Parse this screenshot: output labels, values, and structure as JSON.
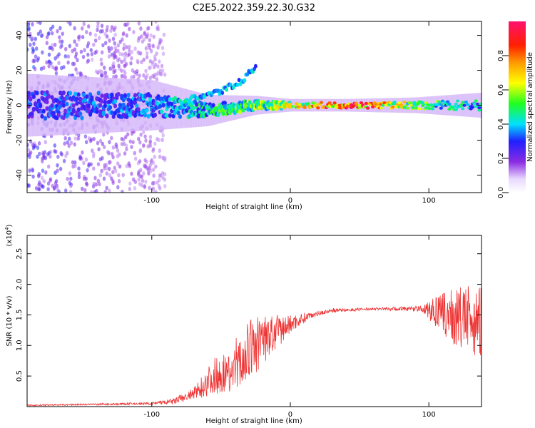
{
  "title": "C2E5.2022.359.22.30.G32",
  "chart_data": [
    {
      "type": "heatmap",
      "xlabel": "Height of straight line (km)",
      "ylabel": "Frequency (Hz)",
      "xlim": [
        -190,
        138
      ],
      "ylim": [
        -50,
        48
      ],
      "xticks": [
        -100,
        0,
        100
      ],
      "yticks": [
        -40,
        -20,
        0,
        20,
        40
      ],
      "colorbar": {
        "label": "Normalized spectral amplitude",
        "range": [
          0.0,
          1.0
        ],
        "ticks": [
          "0.0",
          "0.2",
          "0.4",
          "0.6",
          "0.8"
        ]
      },
      "band": {
        "description_points": [
          {
            "x": -190,
            "y": 0,
            "halfwidth": 10,
            "amp": 0.3
          },
          {
            "x": -100,
            "y": 0,
            "halfwidth": 8,
            "amp": 0.35
          },
          {
            "x": -60,
            "y": -3,
            "halfwidth": 5,
            "amp": 0.45
          },
          {
            "x": -25,
            "y": 0,
            "halfwidth": 3,
            "amp": 0.55
          },
          {
            "x": 0,
            "y": 0,
            "halfwidth": 2,
            "amp": 0.6
          },
          {
            "x": 40,
            "y": 0,
            "halfwidth": 2,
            "amp": 0.95
          },
          {
            "x": 90,
            "y": 0,
            "halfwidth": 2.5,
            "amp": 0.55
          },
          {
            "x": 138,
            "y": 0,
            "halfwidth": 4,
            "amp": 0.4
          }
        ],
        "upper_branch": [
          {
            "x": -75,
            "y": 3
          },
          {
            "x": -50,
            "y": 8
          },
          {
            "x": -35,
            "y": 14
          },
          {
            "x": -25,
            "y": 22
          }
        ]
      },
      "colors": {
        "frame": "#000000"
      }
    },
    {
      "type": "line",
      "xlabel": "Height of straight line (km)",
      "ylabel": "SNR (10 * v/v)",
      "ymultiplier": "(x10",
      "ymultiplier_exp": "4",
      "ymultiplier_close": ")",
      "xlim": [
        -190,
        138
      ],
      "ylim": [
        0,
        2.8
      ],
      "xticks": [
        -100,
        0,
        100
      ],
      "yticks": [
        "0.5",
        "1.0",
        "1.5",
        "2.0",
        "2.5"
      ],
      "series": [
        {
          "color": "#ee3333",
          "envelope": [
            {
              "x": -190,
              "mean": 0.02,
              "spread": 0.01
            },
            {
              "x": -100,
              "mean": 0.05,
              "spread": 0.02
            },
            {
              "x": -85,
              "mean": 0.08,
              "spread": 0.05
            },
            {
              "x": -70,
              "mean": 0.2,
              "spread": 0.1
            },
            {
              "x": -55,
              "mean": 0.5,
              "spread": 0.3
            },
            {
              "x": -40,
              "mean": 0.6,
              "spread": 0.35
            },
            {
              "x": -30,
              "mean": 0.9,
              "spread": 0.5
            },
            {
              "x": -20,
              "mean": 1.1,
              "spread": 0.45
            },
            {
              "x": -10,
              "mean": 1.2,
              "spread": 0.3
            },
            {
              "x": 0,
              "mean": 1.35,
              "spread": 0.15
            },
            {
              "x": 15,
              "mean": 1.5,
              "spread": 0.05
            },
            {
              "x": 30,
              "mean": 1.57,
              "spread": 0.03
            },
            {
              "x": 60,
              "mean": 1.6,
              "spread": 0.02
            },
            {
              "x": 95,
              "mean": 1.6,
              "spread": 0.05
            },
            {
              "x": 105,
              "mean": 1.55,
              "spread": 0.25
            },
            {
              "x": 120,
              "mean": 1.45,
              "spread": 0.5
            },
            {
              "x": 138,
              "mean": 1.4,
              "spread": 0.6
            }
          ]
        }
      ]
    }
  ]
}
